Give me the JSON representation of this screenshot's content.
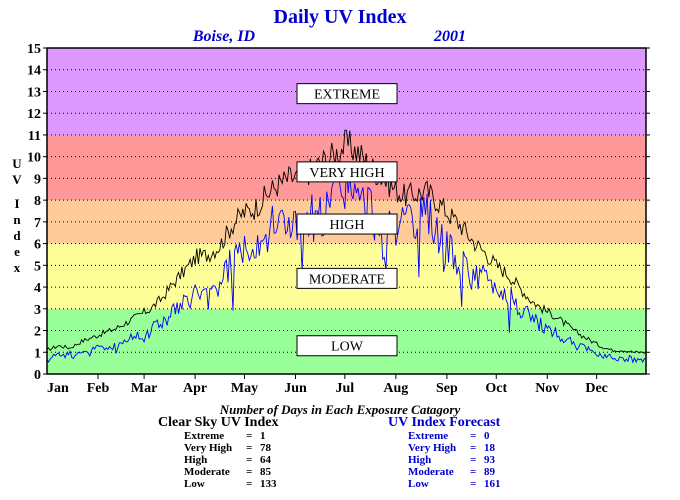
{
  "chart_data": {
    "type": "line",
    "title": "Daily UV Index",
    "location": "Boise, ID",
    "year": "2001",
    "ylabel": "UV Index",
    "ylim": [
      0,
      15
    ],
    "yticks": [
      "0",
      "1",
      "2",
      "3",
      "4",
      "5",
      "6",
      "7",
      "8",
      "9",
      "10",
      "11",
      "12",
      "13",
      "14",
      "15"
    ],
    "months": [
      "Jan",
      "Feb",
      "Mar",
      "Apr",
      "May",
      "Jun",
      "Jul",
      "Aug",
      "Sep",
      "Oct",
      "Nov",
      "Dec"
    ],
    "grid": true,
    "bands": [
      {
        "label": "LOW",
        "from": 0,
        "to": 3,
        "color": "#99ff99",
        "label_y": 1.3
      },
      {
        "label": "MODERATE",
        "from": 3,
        "to": 6,
        "color": "#ffff99",
        "label_y": 4.4
      },
      {
        "label": "HIGH",
        "from": 6,
        "to": 8,
        "color": "#ffcc99",
        "label_y": 6.9
      },
      {
        "label": "VERY HIGH",
        "from": 8,
        "to": 11,
        "color": "#ff9999",
        "label_y": 9.3
      },
      {
        "label": "EXTREME",
        "from": 11,
        "to": 15,
        "color": "#dd99ff",
        "label_y": 12.9
      }
    ],
    "series": [
      {
        "color": "#000000",
        "points": [
          [
            1,
            1.1
          ],
          [
            8,
            1.3
          ],
          [
            15,
            1.2
          ],
          [
            22,
            1.5
          ],
          [
            29,
            1.7
          ],
          [
            36,
            1.9
          ],
          [
            43,
            2.1
          ],
          [
            50,
            2.4
          ],
          [
            57,
            2.7
          ],
          [
            64,
            3.0
          ],
          [
            71,
            3.5
          ],
          [
            78,
            4.2
          ],
          [
            85,
            4.8
          ],
          [
            92,
            5.4
          ],
          [
            99,
            5.5
          ],
          [
            106,
            5.9
          ],
          [
            113,
            6.8
          ],
          [
            120,
            7.4
          ],
          [
            127,
            7.6
          ],
          [
            134,
            8.2
          ],
          [
            141,
            8.7
          ],
          [
            148,
            9.0
          ],
          [
            155,
            9.1
          ],
          [
            162,
            9.4
          ],
          [
            169,
            9.8
          ],
          [
            176,
            10.1
          ],
          [
            183,
            10.6
          ],
          [
            190,
            10.2
          ],
          [
            197,
            9.6
          ],
          [
            204,
            9.1
          ],
          [
            211,
            8.6
          ],
          [
            218,
            8.2
          ],
          [
            225,
            8.3
          ],
          [
            232,
            8.4
          ],
          [
            239,
            7.9
          ],
          [
            246,
            7.3
          ],
          [
            253,
            6.8
          ],
          [
            260,
            6.1
          ],
          [
            267,
            5.6
          ],
          [
            274,
            5.0
          ],
          [
            281,
            4.6
          ],
          [
            288,
            4.0
          ],
          [
            295,
            3.4
          ],
          [
            302,
            3.0
          ],
          [
            309,
            2.7
          ],
          [
            316,
            2.3
          ],
          [
            323,
            1.9
          ],
          [
            330,
            1.6
          ],
          [
            337,
            1.3
          ],
          [
            344,
            1.1
          ],
          [
            351,
            1.1
          ],
          [
            358,
            1.0
          ],
          [
            365,
            1.0
          ]
        ]
      },
      {
        "color": "#0000ff",
        "points": [
          [
            1,
            0.8
          ],
          [
            8,
            0.9
          ],
          [
            15,
            0.9
          ],
          [
            22,
            1.0
          ],
          [
            29,
            1.2
          ],
          [
            36,
            1.2
          ],
          [
            43,
            1.3
          ],
          [
            50,
            1.6
          ],
          [
            57,
            1.8
          ],
          [
            64,
            2.1
          ],
          [
            71,
            2.4
          ],
          [
            78,
            2.9
          ],
          [
            85,
            3.2
          ],
          [
            92,
            3.8
          ],
          [
            99,
            3.4
          ],
          [
            106,
            4.2
          ],
          [
            113,
            5.2
          ],
          [
            120,
            5.9
          ],
          [
            127,
            6.2
          ],
          [
            134,
            6.5
          ],
          [
            141,
            7.0
          ],
          [
            148,
            7.2
          ],
          [
            155,
            6.4
          ],
          [
            162,
            7.4
          ],
          [
            169,
            7.0
          ],
          [
            176,
            8.3
          ],
          [
            183,
            8.9
          ],
          [
            190,
            7.8
          ],
          [
            197,
            7.6
          ],
          [
            204,
            6.8
          ],
          [
            211,
            7.2
          ],
          [
            218,
            6.6
          ],
          [
            225,
            6.9
          ],
          [
            232,
            7.2
          ],
          [
            239,
            6.6
          ],
          [
            246,
            5.6
          ],
          [
            253,
            5.0
          ],
          [
            260,
            4.5
          ],
          [
            267,
            4.4
          ],
          [
            274,
            4.0
          ],
          [
            281,
            3.6
          ],
          [
            288,
            3.1
          ],
          [
            295,
            2.6
          ],
          [
            302,
            2.2
          ],
          [
            309,
            1.9
          ],
          [
            316,
            1.6
          ],
          [
            323,
            1.3
          ],
          [
            330,
            1.1
          ],
          [
            337,
            0.9
          ],
          [
            344,
            0.8
          ],
          [
            351,
            0.7
          ],
          [
            358,
            0.7
          ],
          [
            365,
            0.7
          ]
        ]
      }
    ]
  },
  "summary": {
    "title": "Number of Days in Each Exposure Catagory",
    "clear_sky": {
      "heading": "Clear Sky UV Index",
      "rows": [
        {
          "name": "Extreme",
          "value": "1"
        },
        {
          "name": "Very High",
          "value": "78"
        },
        {
          "name": "High",
          "value": "64"
        },
        {
          "name": "Moderate",
          "value": "85"
        },
        {
          "name": "Low",
          "value": "133"
        }
      ]
    },
    "forecast": {
      "heading": "UV Index Forecast",
      "rows": [
        {
          "name": "Extreme",
          "value": "0"
        },
        {
          "name": "Very High",
          "value": "18"
        },
        {
          "name": "High",
          "value": "93"
        },
        {
          "name": "Moderate",
          "value": "89"
        },
        {
          "name": "Low",
          "value": "161"
        }
      ]
    }
  }
}
